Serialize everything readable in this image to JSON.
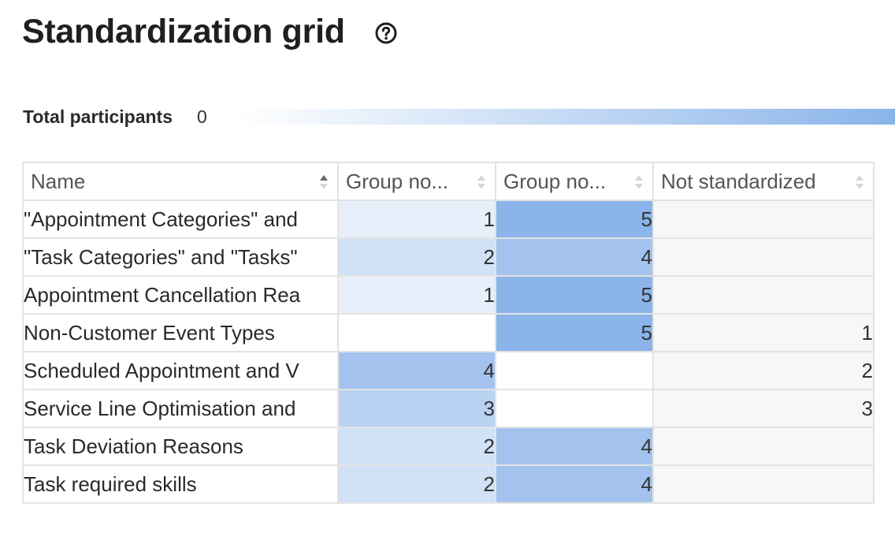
{
  "header": {
    "title": "Standardization grid",
    "help_icon": "question-circle-icon"
  },
  "summary": {
    "label": "Total participants",
    "value": "0",
    "bar_fill": 1.0,
    "bar_color": "#8ab4ea"
  },
  "table": {
    "columns": [
      {
        "label": "Name",
        "sort": "ascending"
      },
      {
        "label": "Group no...",
        "sort": "none"
      },
      {
        "label": "Group no...",
        "sort": "none"
      },
      {
        "label": "Not standardized",
        "sort": "none"
      }
    ],
    "rows": [
      {
        "name": "\"Appointment Categories\" and",
        "g1": "1",
        "g2": "5",
        "ns": ""
      },
      {
        "name": "\"Task Categories\" and \"Tasks\"",
        "g1": "2",
        "g2": "4",
        "ns": ""
      },
      {
        "name": "Appointment Cancellation Rea",
        "g1": "1",
        "g2": "5",
        "ns": ""
      },
      {
        "name": "Non-Customer Event Types",
        "g1": "",
        "g2": "5",
        "ns": "1"
      },
      {
        "name": "Scheduled Appointment and V",
        "g1": "4",
        "g2": "",
        "ns": "2"
      },
      {
        "name": "Service Line Optimisation and",
        "g1": "3",
        "g2": "",
        "ns": "3"
      },
      {
        "name": "Task Deviation Reasons",
        "g1": "2",
        "g2": "4",
        "ns": ""
      },
      {
        "name": "Task required skills",
        "g1": "2",
        "g2": "4",
        "ns": ""
      }
    ],
    "heat_colors": {
      "1": "#e7effb",
      "2": "#d1e1f6",
      "3": "#bad2f2",
      "4": "#a3c3ee",
      "5": "#8ab4ea"
    }
  }
}
